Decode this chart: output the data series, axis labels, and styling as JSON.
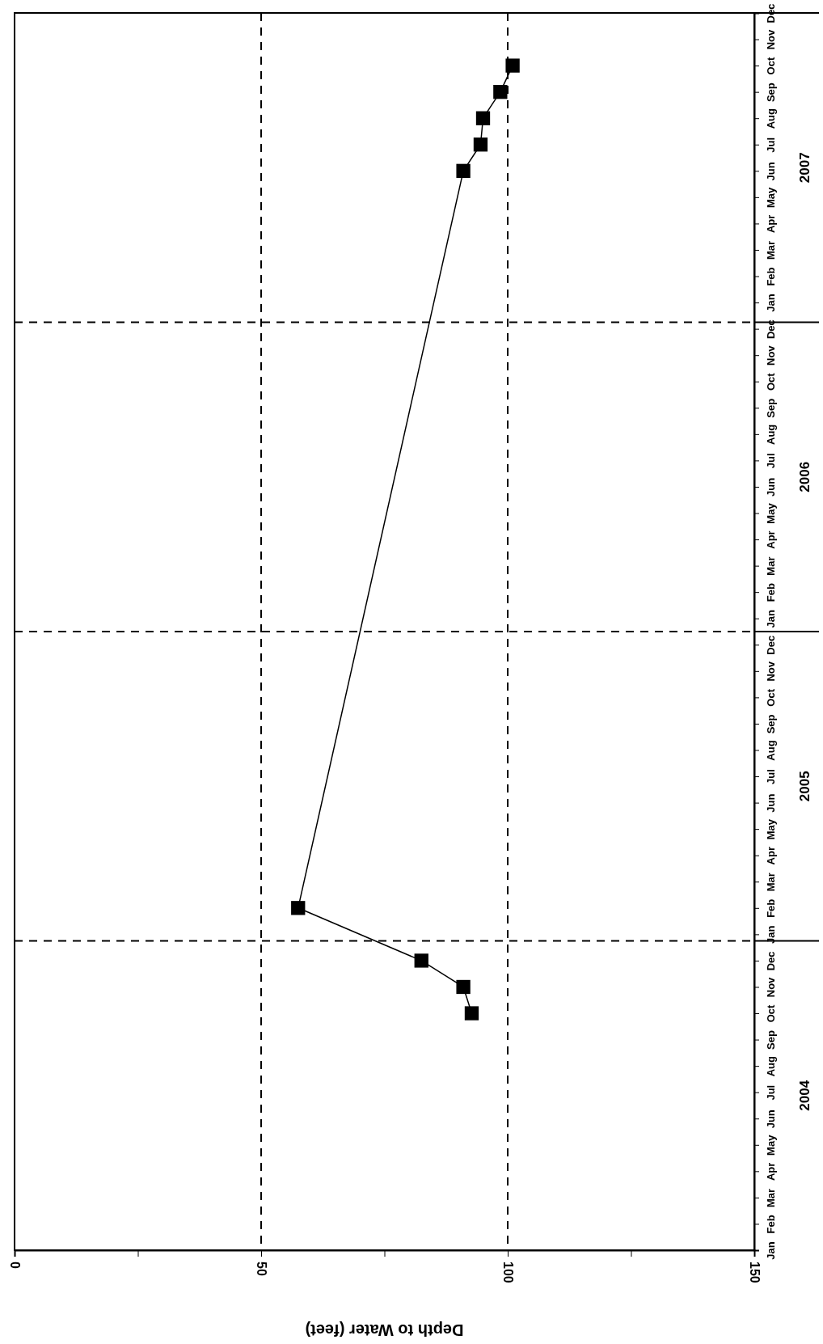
{
  "chart_data": {
    "type": "line",
    "orientation": "horizontal",
    "xlabel": "Depth to Water (feet)",
    "categories": [
      "Dec",
      "Nov",
      "Oct",
      "Sep",
      "Aug",
      "Jul",
      "Jun",
      "May",
      "Apr",
      "Mar",
      "Feb",
      "Jan",
      "Dec",
      "Nov",
      "Oct",
      "Sep",
      "Aug",
      "Jul",
      "Jun",
      "May",
      "Apr",
      "Mar",
      "Feb",
      "Jan",
      "Dec",
      "Nov",
      "Oct",
      "Sep",
      "Aug",
      "Jul",
      "Jun",
      "May",
      "Apr",
      "Mar",
      "Feb",
      "Jan",
      "Dec",
      "Nov",
      "Oct",
      "Sep",
      "Aug",
      "Jul",
      "Jun",
      "May",
      "Apr",
      "Mar",
      "Feb",
      "Jan"
    ],
    "series": [
      {
        "color": "#000000",
        "values": [
          null,
          null,
          101,
          98.5,
          95,
          94.5,
          91,
          null,
          null,
          null,
          null,
          null,
          null,
          null,
          null,
          null,
          null,
          null,
          null,
          null,
          null,
          null,
          null,
          null,
          null,
          null,
          null,
          null,
          null,
          null,
          null,
          null,
          null,
          null,
          57.5,
          null,
          82.5,
          91,
          92.7,
          null,
          null,
          null,
          null,
          null,
          null,
          null,
          null,
          null
        ]
      }
    ],
    "xlim": [
      0,
      150
    ],
    "xticks": [
      0,
      {
        "value": 25,
        "label": null
      },
      50,
      {
        "value": 75,
        "label": null
      },
      100,
      {
        "value": 125,
        "label": null
      },
      150
    ],
    "grid": "x",
    "marker": "square",
    "line_style": "solid",
    "annotations": [
      "2004",
      "2005",
      "2006",
      "2007"
    ]
  }
}
